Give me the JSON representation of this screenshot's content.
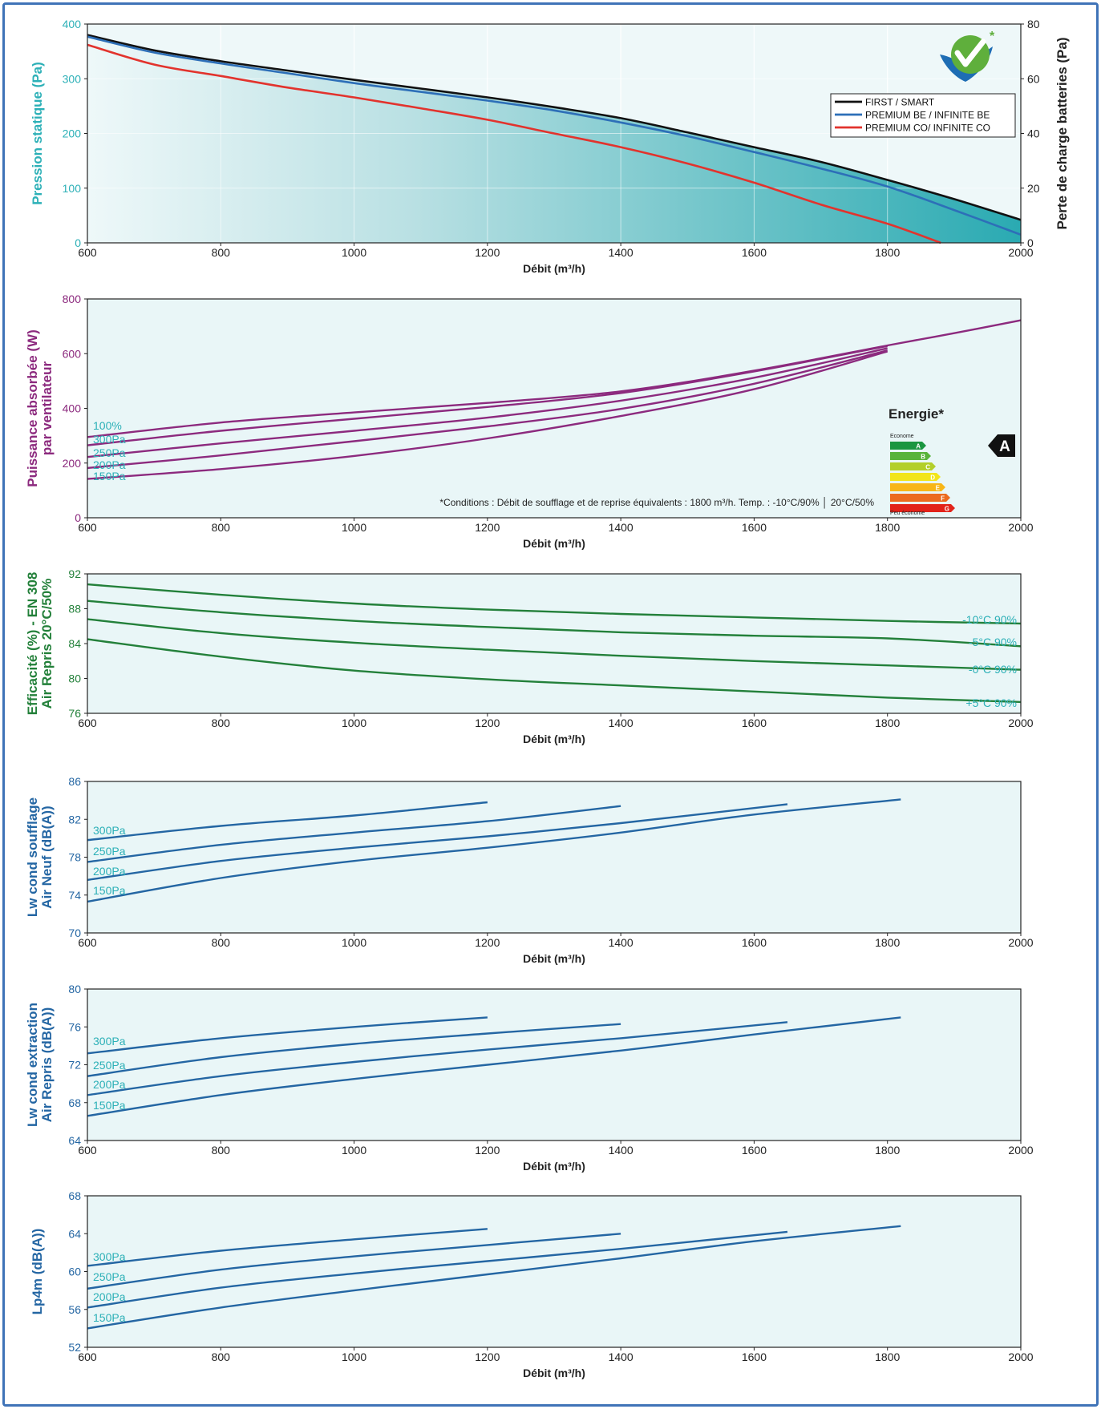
{
  "colors": {
    "frame": "#3f73b8",
    "panel_bg": "#e9f6f7",
    "teal": "#2cb0b7",
    "purple": "#8c2a7e",
    "green": "#23803a",
    "blue": "#2466a3",
    "black": "#111111",
    "red": "#e2332d"
  },
  "chart_data": [
    {
      "type": "area",
      "id": "pressure",
      "xlabel": "Débit (m³/h)",
      "ylabel": "Pression statique (Pa)",
      "y2label": "Perte de charge batteries (Pa)",
      "xlim": [
        600,
        2000
      ],
      "ylim": [
        0,
        400
      ],
      "y2lim": [
        0,
        80
      ],
      "x_ticks": [
        "600",
        "800",
        "1000",
        "1200",
        "1400",
        "1600",
        "1800",
        "2000"
      ],
      "y_ticks": [
        "0",
        "100",
        "200",
        "300",
        "400"
      ],
      "y2_ticks": [
        "0",
        "20",
        "40",
        "60",
        "80"
      ],
      "grid": true,
      "legend_position": "top-right",
      "logo_icon": "check-mark-logo-icon",
      "series": [
        {
          "name": "FIRST / SMART",
          "color": "#111111",
          "x": [
            600,
            700,
            800,
            900,
            1000,
            1100,
            1200,
            1300,
            1400,
            1500,
            1600,
            1700,
            1800,
            1900,
            2000
          ],
          "y": [
            380,
            352,
            332,
            315,
            298,
            282,
            266,
            248,
            228,
            202,
            175,
            148,
            115,
            80,
            42
          ]
        },
        {
          "name": "PREMIUM BE / INFINITE BE",
          "color": "#2d6fb8",
          "x": [
            600,
            700,
            800,
            900,
            1000,
            1100,
            1200,
            1300,
            1400,
            1500,
            1600,
            1700,
            1800,
            1900,
            2000
          ],
          "y": [
            377,
            348,
            328,
            310,
            292,
            276,
            260,
            242,
            220,
            195,
            166,
            136,
            103,
            60,
            15
          ]
        },
        {
          "name": "PREMIUM CO/ INFINITE CO",
          "color": "#e2332d",
          "x": [
            600,
            700,
            800,
            900,
            1000,
            1100,
            1200,
            1300,
            1400,
            1500,
            1600,
            1700,
            1800,
            1880
          ],
          "y": [
            362,
            326,
            305,
            284,
            266,
            246,
            225,
            200,
            175,
            145,
            110,
            70,
            35,
            0
          ]
        }
      ]
    },
    {
      "type": "line",
      "id": "power",
      "xlabel": "Débit (m³/h)",
      "ylabel": [
        "Puissance absorbée (W)",
        "par ventilateur"
      ],
      "xlim": [
        600,
        2000
      ],
      "ylim": [
        0,
        800
      ],
      "x_ticks": [
        "600",
        "800",
        "1000",
        "1200",
        "1400",
        "1600",
        "1800",
        "2000"
      ],
      "y_ticks": [
        "0",
        "200",
        "400",
        "600",
        "800"
      ],
      "color": "#8c2a7e",
      "label_color": "#2cb0b7",
      "series": [
        {
          "name": "100%",
          "x": [
            600,
            800,
            1000,
            1200,
            1400,
            1600,
            1800,
            1900,
            2000
          ],
          "y": [
            295,
            348,
            385,
            420,
            462,
            538,
            630,
            675,
            722
          ]
        },
        {
          "name": "300Pa",
          "x": [
            600,
            800,
            1000,
            1200,
            1400,
            1600,
            1800
          ],
          "y": [
            265,
            318,
            362,
            405,
            456,
            535,
            628
          ]
        },
        {
          "name": "250Pa",
          "x": [
            600,
            800,
            1000,
            1200,
            1400,
            1600,
            1800
          ],
          "y": [
            222,
            272,
            318,
            366,
            428,
            512,
            620
          ]
        },
        {
          "name": "200Pa",
          "x": [
            600,
            800,
            1000,
            1200,
            1400,
            1600,
            1800
          ],
          "y": [
            182,
            228,
            280,
            334,
            398,
            490,
            612
          ]
        },
        {
          "name": "150Pa",
          "x": [
            600,
            800,
            1000,
            1200,
            1400,
            1600,
            1800
          ],
          "y": [
            142,
            178,
            226,
            290,
            372,
            470,
            608
          ]
        }
      ],
      "energy_label": {
        "title": "Energie*",
        "top_text": "Econome",
        "bottom_text": "Peu économe",
        "classes": [
          "A",
          "B",
          "C",
          "D",
          "E",
          "F",
          "G"
        ],
        "class_colors": [
          "#1a9640",
          "#58b33a",
          "#b3cf2b",
          "#f2e51b",
          "#f8b617",
          "#ec6a1e",
          "#e2231a"
        ],
        "rating": "A",
        "footnote": "*Conditions : Débit de soufflage et de reprise équivalents : 1800 m³/h. Temp. : -10°C/90% │ 20°C/50%"
      }
    },
    {
      "type": "line",
      "id": "efficiency",
      "xlabel": "Débit (m³/h)",
      "ylabel": [
        "Efficacité (%) - EN 308",
        "Air Repris 20°C/50%"
      ],
      "xlim": [
        600,
        2000
      ],
      "ylim": [
        76,
        92
      ],
      "x_ticks": [
        "600",
        "800",
        "1000",
        "1200",
        "1400",
        "1600",
        "1800",
        "2000"
      ],
      "y_ticks": [
        "76",
        "80",
        "84",
        "88",
        "92"
      ],
      "color": "#23803a",
      "label_color": "#2cb0b7",
      "series": [
        {
          "name": "-10°C 90%",
          "x": [
            600,
            800,
            1000,
            1200,
            1400,
            1600,
            1800,
            2000
          ],
          "y": [
            90.8,
            89.6,
            88.6,
            87.9,
            87.4,
            87.0,
            86.6,
            86.3
          ]
        },
        {
          "name": "-5°C 90%",
          "x": [
            600,
            800,
            1000,
            1200,
            1400,
            1600,
            1800,
            2000
          ],
          "y": [
            88.9,
            87.6,
            86.6,
            85.9,
            85.3,
            84.9,
            84.6,
            83.7
          ]
        },
        {
          "name": "-0°C 90%",
          "x": [
            600,
            800,
            1000,
            1200,
            1400,
            1600,
            1800,
            2000
          ],
          "y": [
            86.8,
            85.2,
            84.1,
            83.3,
            82.6,
            82.0,
            81.5,
            81.0
          ]
        },
        {
          "name": "+5°C 90%",
          "x": [
            600,
            800,
            1000,
            1200,
            1400,
            1600,
            1800,
            2000
          ],
          "y": [
            84.5,
            82.5,
            80.9,
            79.9,
            79.2,
            78.5,
            77.8,
            77.3
          ]
        }
      ]
    },
    {
      "type": "line",
      "id": "lw-supply",
      "xlabel": "Débit (m³/h)",
      "ylabel": [
        "Lw cond soufflage",
        "Air Neuf (dB(A))"
      ],
      "xlim": [
        600,
        2000
      ],
      "ylim": [
        70,
        86
      ],
      "x_ticks": [
        "600",
        "800",
        "1000",
        "1200",
        "1400",
        "1600",
        "1800",
        "2000"
      ],
      "y_ticks": [
        "70",
        "74",
        "78",
        "82",
        "86"
      ],
      "color": "#2466a3",
      "label_color": "#2cb0b7",
      "series": [
        {
          "name": "300Pa",
          "x": [
            600,
            800,
            1000,
            1200
          ],
          "y": [
            79.8,
            81.3,
            82.4,
            83.8
          ]
        },
        {
          "name": "250Pa",
          "x": [
            600,
            800,
            1000,
            1200,
            1400
          ],
          "y": [
            77.5,
            79.3,
            80.6,
            81.8,
            83.4
          ]
        },
        {
          "name": "200Pa",
          "x": [
            600,
            800,
            1000,
            1200,
            1400,
            1650
          ],
          "y": [
            75.6,
            77.6,
            79.0,
            80.2,
            81.6,
            83.6
          ]
        },
        {
          "name": "150Pa",
          "x": [
            600,
            800,
            1000,
            1200,
            1400,
            1600,
            1820
          ],
          "y": [
            73.3,
            75.8,
            77.6,
            79.0,
            80.6,
            82.5,
            84.1
          ]
        }
      ]
    },
    {
      "type": "line",
      "id": "lw-extract",
      "xlabel": "Débit (m³/h)",
      "ylabel": [
        "Lw cond extraction",
        "Air Repris (dB(A))"
      ],
      "xlim": [
        600,
        2000
      ],
      "ylim": [
        64,
        80
      ],
      "x_ticks": [
        "600",
        "800",
        "1000",
        "1200",
        "1400",
        "1600",
        "1800",
        "2000"
      ],
      "y_ticks": [
        "64",
        "68",
        "72",
        "76",
        "80"
      ],
      "color": "#2466a3",
      "label_color": "#2cb0b7",
      "series": [
        {
          "name": "300Pa",
          "x": [
            600,
            800,
            1000,
            1200
          ],
          "y": [
            73.2,
            74.8,
            76.0,
            77.0
          ]
        },
        {
          "name": "250Pa",
          "x": [
            600,
            800,
            1000,
            1200,
            1400
          ],
          "y": [
            70.8,
            72.8,
            74.2,
            75.3,
            76.3
          ]
        },
        {
          "name": "200Pa",
          "x": [
            600,
            800,
            1000,
            1200,
            1400,
            1650
          ],
          "y": [
            68.8,
            70.8,
            72.3,
            73.6,
            74.8,
            76.5
          ]
        },
        {
          "name": "150Pa",
          "x": [
            600,
            800,
            1000,
            1200,
            1400,
            1600,
            1820
          ],
          "y": [
            66.6,
            68.8,
            70.5,
            72.0,
            73.5,
            75.2,
            77.0
          ]
        }
      ]
    },
    {
      "type": "line",
      "id": "lp4m",
      "xlabel": "Débit (m³/h)",
      "ylabel": [
        "Lp4m (dB(A))"
      ],
      "xlim": [
        600,
        2000
      ],
      "ylim": [
        52,
        68
      ],
      "x_ticks": [
        "600",
        "800",
        "1000",
        "1200",
        "1400",
        "1600",
        "1800",
        "2000"
      ],
      "y_ticks": [
        "52",
        "56",
        "60",
        "64",
        "68"
      ],
      "color": "#2466a3",
      "label_color": "#2cb0b7",
      "series": [
        {
          "name": "300Pa",
          "x": [
            600,
            800,
            1000,
            1200
          ],
          "y": [
            60.6,
            62.2,
            63.4,
            64.5
          ]
        },
        {
          "name": "250Pa",
          "x": [
            600,
            800,
            1000,
            1200,
            1400
          ],
          "y": [
            58.2,
            60.2,
            61.6,
            62.8,
            64.0
          ]
        },
        {
          "name": "200Pa",
          "x": [
            600,
            800,
            1000,
            1200,
            1400,
            1650
          ],
          "y": [
            56.2,
            58.3,
            59.8,
            61.1,
            62.4,
            64.2
          ]
        },
        {
          "name": "150Pa",
          "x": [
            600,
            800,
            1000,
            1200,
            1400,
            1600,
            1820
          ],
          "y": [
            54.0,
            56.2,
            58.0,
            59.7,
            61.4,
            63.2,
            64.8
          ]
        }
      ]
    }
  ]
}
